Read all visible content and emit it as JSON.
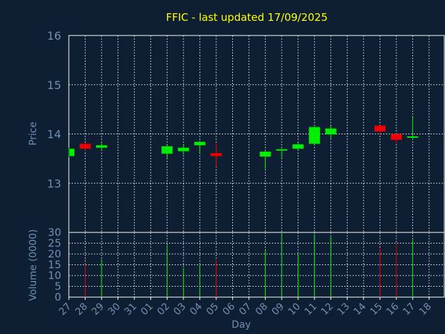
{
  "chart_data": {
    "type": "candlestick",
    "title": "FFIC - last updated 17/09/2025",
    "price_panel": {
      "ylabel": "Price",
      "ylim": [
        12.0,
        16.0
      ],
      "yticks": [
        "13",
        "14",
        "15",
        "16"
      ],
      "ytick_values": [
        13,
        14,
        15,
        16
      ],
      "grid": true
    },
    "volume_panel": {
      "ylabel": "Volume (0000)",
      "ylim": [
        0,
        30
      ],
      "yticks": [
        "0",
        "5",
        "10",
        "15",
        "20",
        "25",
        "30"
      ],
      "ytick_values": [
        0,
        5,
        10,
        15,
        20,
        25,
        30
      ],
      "grid": true
    },
    "xlabel": "Day",
    "x_categories": [
      "27",
      "28",
      "29",
      "30",
      "31",
      "01",
      "02",
      "03",
      "04",
      "05",
      "06",
      "07",
      "08",
      "09",
      "10",
      "11",
      "12",
      "13",
      "14",
      "15",
      "16",
      "17",
      "18"
    ],
    "candles": [
      {
        "day": "27",
        "open": 13.55,
        "close": 13.7,
        "high": 13.72,
        "low": 13.53,
        "volume": 0
      },
      {
        "day": "28",
        "open": 13.8,
        "close": 13.7,
        "high": 13.82,
        "low": 13.66,
        "volume": 15.5
      },
      {
        "day": "29",
        "open": 13.72,
        "close": 13.77,
        "high": 13.82,
        "low": 13.67,
        "volume": 17.5
      },
      {
        "day": "02",
        "open": 13.6,
        "close": 13.75,
        "high": 13.78,
        "low": 13.48,
        "volume": 24
      },
      {
        "day": "03",
        "open": 13.65,
        "close": 13.72,
        "high": 13.78,
        "low": 13.58,
        "volume": 13.5
      },
      {
        "day": "04",
        "open": 13.77,
        "close": 13.84,
        "high": 13.86,
        "low": 13.62,
        "volume": 15.5
      },
      {
        "day": "05",
        "open": 13.61,
        "close": 13.55,
        "high": 13.83,
        "low": 13.33,
        "volume": 17
      },
      {
        "day": "08",
        "open": 13.54,
        "close": 13.64,
        "high": 13.66,
        "low": 13.28,
        "volume": 22
      },
      {
        "day": "09",
        "open": 13.66,
        "close": 13.69,
        "high": 13.7,
        "low": 13.5,
        "volume": 30
      },
      {
        "day": "10",
        "open": 13.7,
        "close": 13.79,
        "high": 13.83,
        "low": 13.67,
        "volume": 20.5
      },
      {
        "day": "11",
        "open": 13.8,
        "close": 14.14,
        "high": 14.15,
        "low": 13.79,
        "volume": 29
      },
      {
        "day": "12",
        "open": 13.99,
        "close": 14.11,
        "high": 14.17,
        "low": 13.9,
        "volume": 28
      },
      {
        "day": "15",
        "open": 14.17,
        "close": 14.05,
        "high": 14.18,
        "low": 13.99,
        "volume": 22.5
      },
      {
        "day": "16",
        "open": 14.0,
        "close": 13.88,
        "high": 14.01,
        "low": 13.8,
        "volume": 25
      },
      {
        "day": "17",
        "open": 13.93,
        "close": 13.95,
        "high": 14.33,
        "low": 13.88,
        "volume": 26.5
      }
    ],
    "colors": {
      "background": "#0f1f33",
      "up": "#00ee00",
      "down": "#ee0000",
      "grid": "#ffffff",
      "axis_text": "#6f8fb3",
      "title": "#ffff00"
    }
  }
}
